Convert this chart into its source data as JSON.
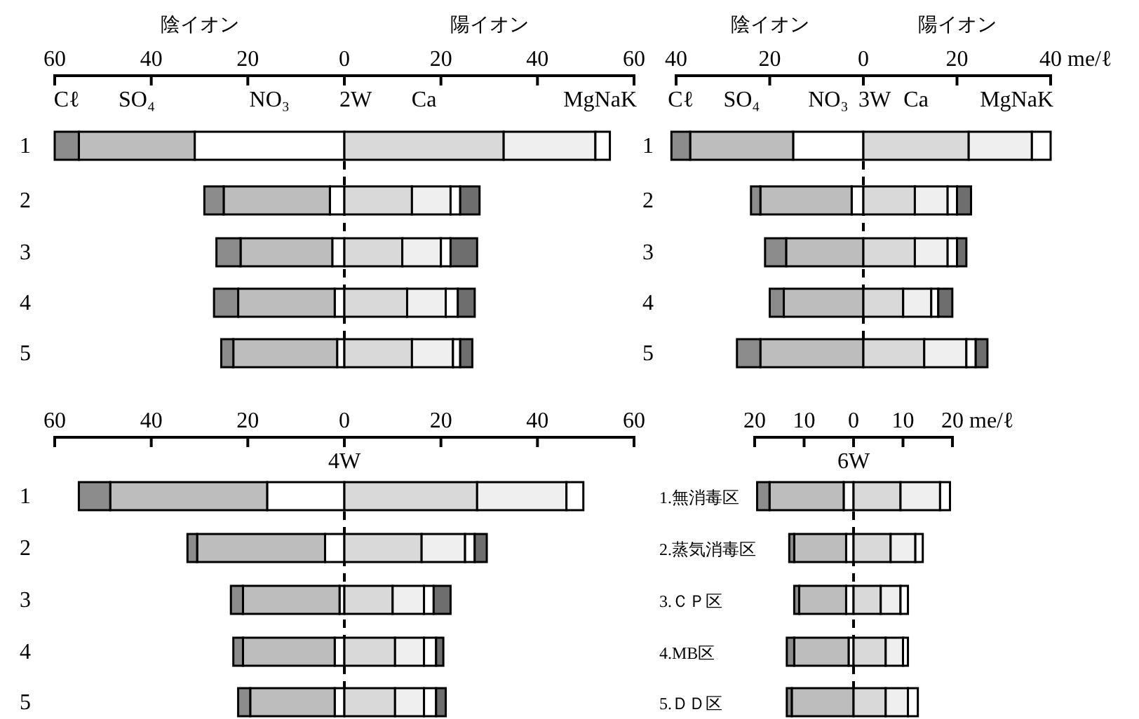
{
  "chart_data": [
    {
      "type": "bar",
      "orientation": "horizontal",
      "stacked": true,
      "title": "2W",
      "annotations": [
        "陰イオン",
        "陽イオン",
        "MgNaK"
      ],
      "categories": [
        "1",
        "2",
        "3",
        "4",
        "5"
      ],
      "xlim": [
        -60,
        60
      ],
      "xticks": [
        {
          "value": -60,
          "label": "60"
        },
        {
          "value": -40,
          "label": "40"
        },
        {
          "value": -20,
          "label": "20"
        },
        0,
        20,
        40,
        60
      ],
      "ref_lines": [
        {
          "axis": "x",
          "value": 0,
          "line_style": "dashed",
          "color": "#000000"
        }
      ],
      "series": [
        {
          "name": "NO₃",
          "color": "#ffffff",
          "values": [
            -31,
            -3,
            -2.5,
            -2,
            -1.5
          ]
        },
        {
          "name": "SO₄",
          "color": "#bdbdbd",
          "values": [
            -24,
            -22,
            -19,
            -20,
            -21.5
          ]
        },
        {
          "name": "Cℓ",
          "color": "#8c8c8c",
          "values": [
            -5,
            -4,
            -5,
            -5,
            -2.5
          ]
        },
        {
          "name": "Ca",
          "color": "#d9d9d9",
          "values": [
            33,
            14,
            12,
            13,
            14
          ]
        },
        {
          "color": "#efefef",
          "values": [
            19,
            8,
            8,
            8,
            8.5
          ]
        },
        {
          "color": "#ffffff",
          "values": [
            3,
            2,
            2,
            2.5,
            1.5
          ]
        },
        {
          "color": "#6e6e6e",
          "values": [
            null,
            4,
            5.5,
            3.5,
            2.5
          ]
        }
      ]
    },
    {
      "type": "bar",
      "orientation": "horizontal",
      "stacked": true,
      "title": "3W",
      "xlabel": "me/ℓ",
      "annotations": [
        "陰イオン",
        "陽イオン",
        "MgNaK"
      ],
      "categories": [
        "1",
        "2",
        "3",
        "4",
        "5"
      ],
      "xlim": [
        -40,
        40
      ],
      "xticks": [
        {
          "value": -40,
          "label": "40"
        },
        {
          "value": -20,
          "label": "20"
        },
        0,
        20,
        40
      ],
      "ref_lines": [
        {
          "axis": "x",
          "value": 0,
          "line_style": "dashed",
          "color": "#000000"
        }
      ],
      "series": [
        {
          "name": "NO₃",
          "color": "#ffffff",
          "values": [
            -15,
            -2.5,
            null,
            null,
            null
          ]
        },
        {
          "name": "SO₄",
          "color": "#bdbdbd",
          "values": [
            -22,
            -19.5,
            -16.5,
            -17,
            -22
          ]
        },
        {
          "name": "Cℓ",
          "color": "#8c8c8c",
          "values": [
            -4,
            -2,
            -4.5,
            -3,
            -5
          ]
        },
        {
          "name": "Ca",
          "color": "#d9d9d9",
          "values": [
            22.5,
            11,
            11,
            8.5,
            13
          ]
        },
        {
          "color": "#efefef",
          "values": [
            13.5,
            7,
            7,
            6,
            9
          ]
        },
        {
          "color": "#ffffff",
          "values": [
            4,
            2,
            2,
            1.5,
            2
          ]
        },
        {
          "color": "#6e6e6e",
          "values": [
            null,
            3,
            2,
            3,
            2.5
          ]
        }
      ]
    },
    {
      "type": "bar",
      "orientation": "horizontal",
      "stacked": true,
      "title": "4W",
      "categories": [
        "1",
        "2",
        "3",
        "4",
        "5"
      ],
      "xlim": [
        -60,
        60
      ],
      "xticks": [
        {
          "value": -60,
          "label": "60"
        },
        {
          "value": -40,
          "label": "40"
        },
        {
          "value": -20,
          "label": "20"
        },
        0,
        20,
        40,
        60
      ],
      "ref_lines": [
        {
          "axis": "x",
          "value": 0,
          "line_style": "dashed",
          "color": "#000000"
        }
      ],
      "series": [
        {
          "color": "#ffffff",
          "values": [
            -16,
            -4,
            -1,
            -2,
            -2
          ]
        },
        {
          "color": "#bdbdbd",
          "values": [
            -32.5,
            -26.5,
            -20,
            -19,
            -17.5
          ]
        },
        {
          "color": "#8c8c8c",
          "values": [
            -6.5,
            -2,
            -2.5,
            -2,
            -2.5
          ]
        },
        {
          "color": "#d9d9d9",
          "values": [
            27.5,
            16,
            10,
            10.5,
            10.5
          ]
        },
        {
          "color": "#efefef",
          "values": [
            18.5,
            9,
            6.5,
            6,
            6
          ]
        },
        {
          "color": "#ffffff",
          "values": [
            3.5,
            2,
            2,
            2.5,
            2.5
          ]
        },
        {
          "color": "#6e6e6e",
          "values": [
            null,
            2.5,
            3.5,
            1.5,
            2
          ]
        }
      ]
    },
    {
      "type": "bar",
      "orientation": "horizontal",
      "stacked": true,
      "title": "6W",
      "xlabel": "me/ℓ",
      "categories": [
        "1.無消毒区",
        "2.蒸気消毒区",
        "3.ＣＰ区",
        "4.MB区",
        "5.ＤＤ区"
      ],
      "xlim": [
        -20,
        20
      ],
      "xticks": [
        {
          "value": -20,
          "label": "20"
        },
        {
          "value": -10,
          "label": "10"
        },
        0,
        10,
        20
      ],
      "ref_lines": [
        {
          "axis": "x",
          "value": 0,
          "line_style": "dashed",
          "color": "#000000"
        }
      ],
      "series": [
        {
          "color": "#ffffff",
          "values": [
            -2,
            -1.5,
            -1.5,
            -1,
            null
          ]
        },
        {
          "color": "#bdbdbd",
          "values": [
            -15,
            -10.5,
            -9.5,
            -11,
            -12.5
          ]
        },
        {
          "color": "#8c8c8c",
          "values": [
            -2.5,
            -1,
            -1,
            -1.5,
            -1
          ]
        },
        {
          "color": "#d9d9d9",
          "values": [
            9.5,
            7.5,
            5.5,
            6.5,
            6.5
          ]
        },
        {
          "color": "#efefef",
          "values": [
            8,
            5,
            4,
            3.5,
            4.5
          ]
        },
        {
          "color": "#ffffff",
          "values": [
            2,
            1.5,
            1.5,
            1,
            2
          ]
        }
      ]
    }
  ]
}
